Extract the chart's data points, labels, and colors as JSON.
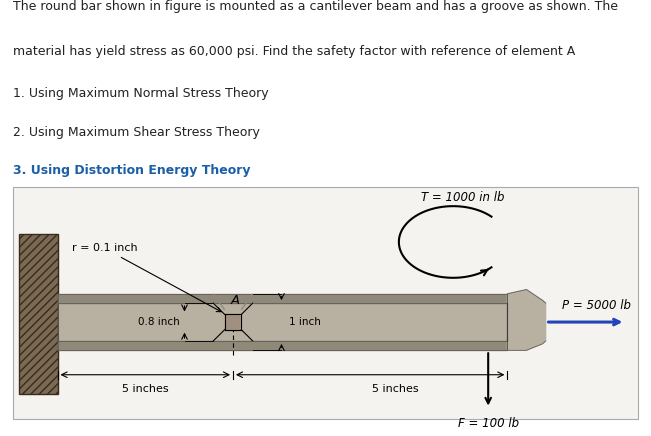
{
  "title_line1": "The round bar shown in figure is mounted as a cantilever beam and has a groove as shown. The",
  "title_line2": "material has yield stress as 60,000 psi. Find the safety factor with reference of element A",
  "point1": "1. Using Maximum Normal Stress Theory",
  "point2": "2. Using Maximum Shear Stress Theory",
  "point3": "3. Using Distortion Energy Theory",
  "bg_color": "#f5f3f0",
  "wall_color": "#7a6a55",
  "bar_color": "#b8b0a0",
  "bar_dark": "#908878",
  "text_color": "#222222",
  "label_T": "T = 1000 in lb",
  "label_P": "P = 5000 lb",
  "label_F": "F = 100 lb",
  "label_r": "r = 0.1 inch",
  "label_08": "0.8 inch",
  "label_1inch": "1 inch",
  "label_5in_left": "5 inches",
  "label_5in_right": "5 inches",
  "label_A": "A",
  "point3_color": "#1a5fa8"
}
